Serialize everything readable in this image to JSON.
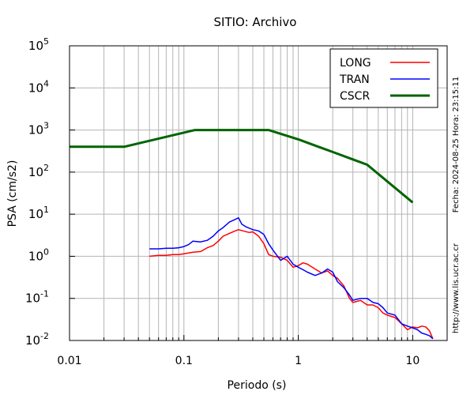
{
  "chart_data": {
    "type": "line",
    "title": "SITIO: Archivo",
    "xlabel": "Periodo (s)",
    "ylabel": "PSA (cm/s2)",
    "x_scale": "log",
    "y_scale": "log",
    "xlim": [
      0.01,
      20
    ],
    "ylim": [
      0.01,
      100000
    ],
    "grid": true,
    "legend_position": "top-right",
    "x_tick_labels": [
      {
        "value": 0.01,
        "label": "0.01"
      },
      {
        "value": 0.1,
        "label": "0.1"
      },
      {
        "value": 1,
        "label": "1"
      },
      {
        "value": 10,
        "label": "10"
      }
    ],
    "y_tick_labels": [
      {
        "value": 0.01,
        "base": "10",
        "exp": "-2"
      },
      {
        "value": 0.1,
        "base": "10",
        "exp": "-1"
      },
      {
        "value": 1,
        "base": "10",
        "exp": "0"
      },
      {
        "value": 10,
        "base": "10",
        "exp": "1"
      },
      {
        "value": 100,
        "base": "10",
        "exp": "2"
      },
      {
        "value": 1000,
        "base": "10",
        "exp": "3"
      },
      {
        "value": 10000,
        "base": "10",
        "exp": "4"
      },
      {
        "value": 100000,
        "base": "10",
        "exp": "5"
      }
    ],
    "series": [
      {
        "name": "LONG",
        "color": "#ff0000",
        "x": [
          0.05,
          0.06,
          0.07,
          0.08,
          0.09,
          0.1,
          0.12,
          0.14,
          0.16,
          0.18,
          0.2,
          0.22,
          0.25,
          0.28,
          0.3,
          0.33,
          0.37,
          0.4,
          0.45,
          0.5,
          0.55,
          0.6,
          0.7,
          0.8,
          0.9,
          1.0,
          1.1,
          1.2,
          1.4,
          1.6,
          1.8,
          2.0,
          2.2,
          2.5,
          2.8,
          3.0,
          3.5,
          4.0,
          4.5,
          5.0,
          5.5,
          6.0,
          7.0,
          8.0,
          9.0,
          10.0,
          11.0,
          12.0,
          13.0,
          14.0,
          15.0
        ],
        "y": [
          1.0,
          1.05,
          1.05,
          1.1,
          1.1,
          1.15,
          1.25,
          1.3,
          1.6,
          1.8,
          2.3,
          3.0,
          3.5,
          4.0,
          4.3,
          4.0,
          3.7,
          3.8,
          3.0,
          2.0,
          1.1,
          1.0,
          0.95,
          0.8,
          0.55,
          0.6,
          0.7,
          0.65,
          0.5,
          0.4,
          0.45,
          0.35,
          0.3,
          0.2,
          0.1,
          0.08,
          0.09,
          0.07,
          0.07,
          0.06,
          0.045,
          0.04,
          0.035,
          0.025,
          0.018,
          0.021,
          0.02,
          0.022,
          0.021,
          0.017,
          0.011
        ]
      },
      {
        "name": "TRAN",
        "color": "#0000ff",
        "x": [
          0.05,
          0.06,
          0.07,
          0.08,
          0.09,
          0.1,
          0.11,
          0.12,
          0.14,
          0.16,
          0.18,
          0.2,
          0.22,
          0.25,
          0.28,
          0.3,
          0.32,
          0.35,
          0.4,
          0.45,
          0.5,
          0.55,
          0.6,
          0.7,
          0.8,
          0.9,
          1.0,
          1.1,
          1.2,
          1.4,
          1.6,
          1.8,
          2.0,
          2.2,
          2.5,
          2.8,
          3.0,
          3.5,
          4.0,
          4.5,
          5.0,
          5.5,
          6.0,
          7.0,
          8.0,
          9.0,
          10.0,
          11.0,
          12.0,
          13.0,
          14.0,
          15.0
        ],
        "y": [
          1.5,
          1.5,
          1.55,
          1.55,
          1.6,
          1.7,
          1.9,
          2.3,
          2.2,
          2.4,
          3.0,
          4.0,
          4.8,
          6.5,
          7.5,
          8.2,
          5.8,
          5.0,
          4.3,
          4.0,
          3.3,
          2.0,
          1.4,
          0.8,
          1.0,
          0.65,
          0.55,
          0.48,
          0.42,
          0.35,
          0.4,
          0.5,
          0.42,
          0.25,
          0.18,
          0.12,
          0.09,
          0.1,
          0.1,
          0.08,
          0.075,
          0.06,
          0.045,
          0.04,
          0.025,
          0.022,
          0.02,
          0.018,
          0.015,
          0.014,
          0.013,
          0.011
        ]
      },
      {
        "name": "CSCR",
        "color": "#006400",
        "x": [
          0.01,
          0.03,
          0.125,
          0.55,
          1.0,
          1.5,
          2.0,
          3.0,
          4.0,
          6.0,
          10.0
        ],
        "y": [
          400,
          400,
          1000,
          1000,
          600,
          400,
          300,
          200,
          150,
          60,
          19
        ]
      }
    ]
  },
  "side_labels": {
    "timestamp": "Fecha: 2024-08-25 Hora: 23:15:11",
    "website": "http://www.lis.ucr.ac.cr"
  }
}
